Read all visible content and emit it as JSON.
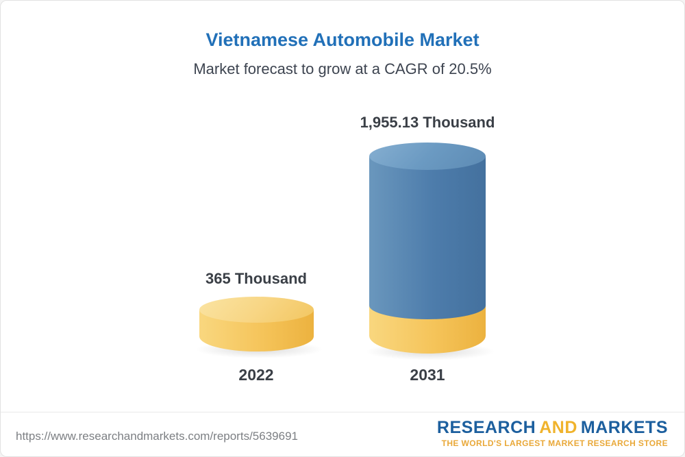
{
  "chart_data": {
    "type": "bar",
    "title": "Vietnamese Automobile Market",
    "subtitle": "Market forecast to grow at a CAGR of 20.5%",
    "categories": [
      "2022",
      "2031"
    ],
    "values": [
      365,
      1955.13
    ],
    "value_labels": [
      "365 Thousand",
      "1,955.13 Thousand"
    ],
    "unit": "Thousand",
    "cagr_percent": 20.5,
    "legend_position": "none",
    "grid": false,
    "colors": {
      "bar_2022": "#f5c45a",
      "bar_2031": "#4d7cab",
      "bar_2031_base_band": "#f5c45a",
      "title": "#2170b8",
      "label_text": "#3a3f46"
    }
  },
  "footer": {
    "url": "https://www.researchandmarkets.com/reports/5639691",
    "logo": {
      "part1": "RESEARCH",
      "part2": "AND",
      "part3": "MARKETS",
      "tagline": "THE WORLD'S LARGEST MARKET RESEARCH STORE"
    }
  }
}
